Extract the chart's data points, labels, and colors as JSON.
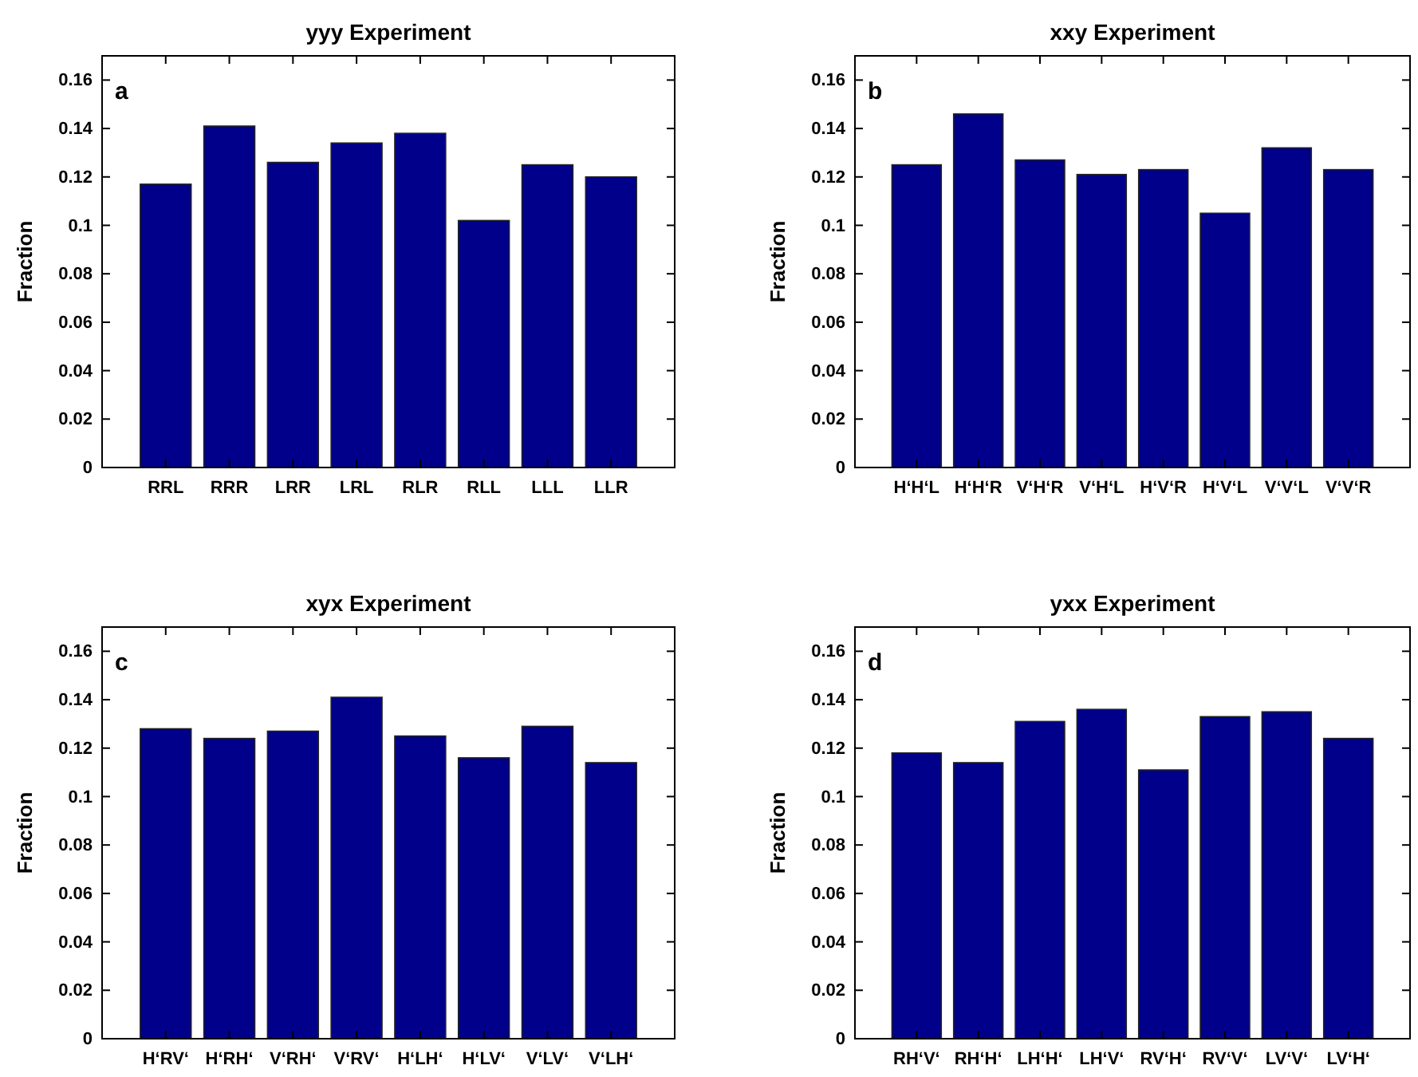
{
  "chart_data": [
    {
      "type": "bar",
      "title": "yyy Experiment",
      "ylabel": "Fraction",
      "annotations": [
        "a"
      ],
      "categories": [
        "RRL",
        "RRR",
        "LRR",
        "LRL",
        "RLR",
        "RLL",
        "LLL",
        "LLR"
      ],
      "values": [
        0.117,
        0.141,
        0.126,
        0.134,
        0.138,
        0.102,
        0.125,
        0.12
      ],
      "color": "#00008b",
      "ylim": [
        0,
        0.17
      ],
      "yticks": [
        0,
        0.02,
        0.04,
        0.06,
        0.08,
        0.1,
        0.12,
        0.14,
        0.16
      ],
      "grid": false
    },
    {
      "type": "bar",
      "title": "xxy Experiment",
      "ylabel": "Fraction",
      "annotations": [
        "b"
      ],
      "categories": [
        "H‘H‘L",
        "H‘H‘R",
        "V‘H‘R",
        "V‘H‘L",
        "H‘V‘R",
        "H‘V‘L",
        "V‘V‘L",
        "V‘V‘R"
      ],
      "values": [
        0.125,
        0.146,
        0.127,
        0.121,
        0.123,
        0.105,
        0.132,
        0.123
      ],
      "color": "#00008b",
      "ylim": [
        0,
        0.17
      ],
      "yticks": [
        0,
        0.02,
        0.04,
        0.06,
        0.08,
        0.1,
        0.12,
        0.14,
        0.16
      ],
      "grid": false
    },
    {
      "type": "bar",
      "title": "xyx Experiment",
      "ylabel": "Fraction",
      "annotations": [
        "c"
      ],
      "categories": [
        "H‘RV‘",
        "H‘RH‘",
        "V‘RH‘",
        "V‘RV‘",
        "H‘LH‘",
        "H‘LV‘",
        "V‘LV‘",
        "V‘LH‘"
      ],
      "values": [
        0.128,
        0.124,
        0.127,
        0.141,
        0.125,
        0.116,
        0.129,
        0.114
      ],
      "color": "#00008b",
      "ylim": [
        0,
        0.17
      ],
      "yticks": [
        0,
        0.02,
        0.04,
        0.06,
        0.08,
        0.1,
        0.12,
        0.14,
        0.16
      ],
      "grid": false
    },
    {
      "type": "bar",
      "title": "yxx Experiment",
      "ylabel": "Fraction",
      "annotations": [
        "d"
      ],
      "categories": [
        "RH‘V‘",
        "RH‘H‘",
        "LH‘H‘",
        "LH‘V‘",
        "RV‘H‘",
        "RV‘V‘",
        "LV‘V‘",
        "LV‘H‘"
      ],
      "values": [
        0.118,
        0.114,
        0.131,
        0.136,
        0.111,
        0.133,
        0.135,
        0.124
      ],
      "color": "#00008b",
      "ylim": [
        0,
        0.17
      ],
      "yticks": [
        0,
        0.02,
        0.04,
        0.06,
        0.08,
        0.1,
        0.12,
        0.14,
        0.16
      ],
      "grid": false
    }
  ]
}
